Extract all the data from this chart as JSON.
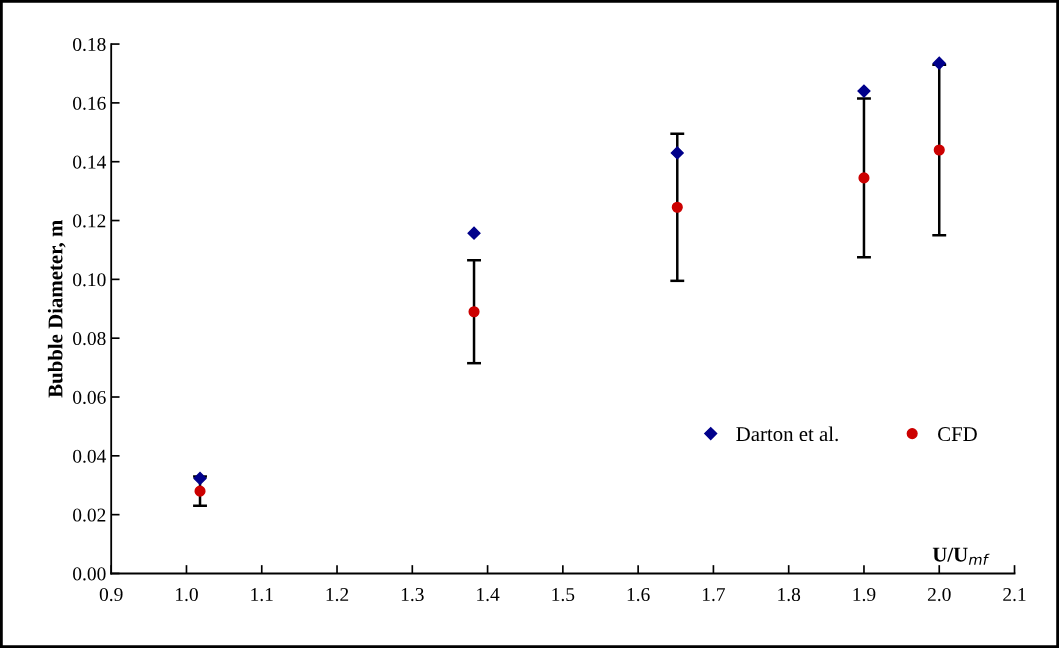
{
  "chart_data": {
    "type": "scatter",
    "xlabel": "U/U$_{mf}$",
    "ylabel": "Bubble Diameter, m",
    "series": [
      {
        "name": "Darton et al.",
        "color": "#00008b",
        "marker": "diamond",
        "x": [
          1.018,
          1.382,
          1.652,
          1.9,
          2.0
        ],
        "values": [
          0.0323,
          0.1157,
          0.143,
          0.164,
          0.1735
        ]
      },
      {
        "name": "CFD",
        "color": "#cc0000",
        "marker": "circle",
        "x": [
          1.018,
          1.382,
          1.652,
          1.9,
          2.0
        ],
        "values": [
          0.028,
          0.089,
          0.1245,
          0.1345,
          0.144
        ],
        "errors": [
          0.005,
          0.0175,
          0.025,
          0.027,
          0.029
        ]
      }
    ],
    "xlim": [
      0.9,
      2.1
    ],
    "xticks": [
      0.9,
      {
        "value": 1,
        "label": "1.0"
      },
      1.1,
      1.2,
      1.3,
      1.4,
      1.5,
      1.6,
      1.7,
      1.8,
      1.9,
      {
        "value": 2,
        "label": "2.0"
      },
      2.1
    ],
    "ylim": [
      0,
      0.18
    ],
    "yticks": [
      {
        "value": 0,
        "label": "0.00"
      },
      {
        "value": 0.02,
        "label": "0.02"
      },
      {
        "value": 0.04,
        "label": "0.04"
      },
      {
        "value": 0.06,
        "label": "0.06"
      },
      {
        "value": 0.08,
        "label": "0.08"
      },
      {
        "value": 0.1,
        "label": "0.10"
      },
      {
        "value": 0.12,
        "label": "0.12"
      },
      {
        "value": 0.14,
        "label": "0.14"
      },
      {
        "value": 0.16,
        "label": "0.16"
      },
      {
        "value": 0.18,
        "label": "0.18"
      }
    ],
    "legend": "right",
    "grid": false
  }
}
